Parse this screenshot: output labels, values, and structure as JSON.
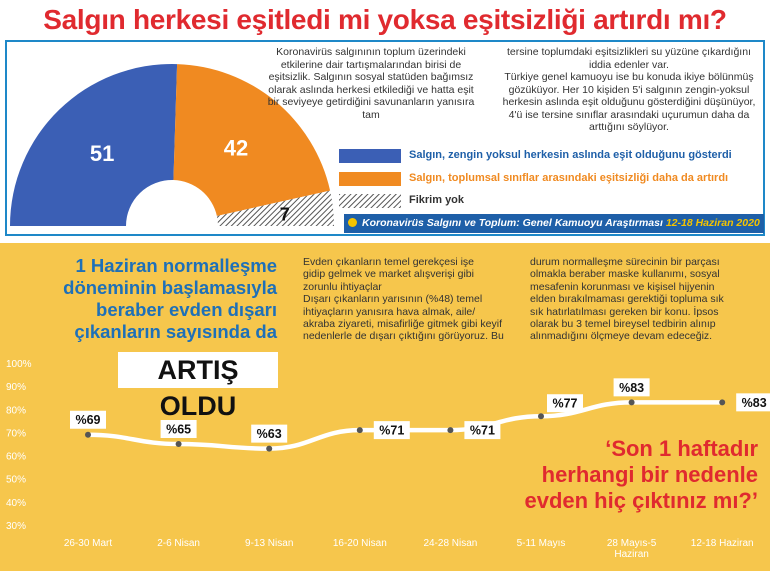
{
  "title": "Salgın herkesi eşitledi mi yoksa eşitsizliği artırdı mı?",
  "top_text": {
    "col1": "Koronavirüs salgınının toplum üzerindeki etkilerine dair tartışmalarından birisi de eşitsizlik. Salgının sosyal statüden bağımsız olarak aslında herkesi etkilediği ve hatta eşit bir seviyeye getirdiğini savunanların yanısıra tam",
    "col2": "tersine toplumdaki eşitsizlikleri su yüzüne çıkardığını iddia edenler var.\nTürkiye genel kamuoyu ise bu konuda ikiye bölünmüş gözüküyor. Her 10 kişiden 5'i salgının zengin-yoksul herkesin aslında eşit olduğunu gösterdiğini düşünüyor, 4'ü ise tersine sınıflar arasındaki uçurumun daha da arttığını söylüyor."
  },
  "legend": [
    {
      "label": "Salgın, zengin yoksul herkesin aslında eşit olduğunu gösterdi",
      "color": "#3b5fb5"
    },
    {
      "label": "Salgın, toplumsal sınıflar arasındaki eşitsizliği daha da artırdı",
      "color": "#f08a21"
    },
    {
      "label": "Fikrim yok",
      "color": "hatched"
    }
  ],
  "source": {
    "text": "Koronavirüs Salgını ve Toplum: Genel Kamuoyu Araştırması",
    "date": "12-18 Haziran 2020"
  },
  "headline": [
    "1 Haziran normalleşme",
    "döneminin başlamasıyla",
    "beraber evden dışarı",
    "çıkanların sayısında da"
  ],
  "headline_emph": "ARTIŞ OLDU",
  "body_col1": [
    "Evden çıkanların temel gerekçesi işe",
    "gidip gelmek ve market alışverişi gibi",
    "zorunlu ihtiyaçlar",
    "Dışarı çıkanların yarısının (%48) temel",
    "ihtiyaçların yanısıra hava almak, aile/",
    "akraba ziyareti, misafirliğe gitmek gibi keyif",
    "nedenlerle de dışarı çıktığını görüyoruz. Bu"
  ],
  "body_col2": [
    "durum normalleşme sürecinin bir parçası",
    "olmakla beraber maske kullanımı, sosyal",
    "mesafenin korunması ve kişisel hijyenin",
    "elden bırakılmaması gerektiği topluma sık",
    "sık hatırlatılması gereken bir konu. İpsos",
    "olarak bu 3 temel bireysel tedbirin alınıp",
    "alınmadığını ölçmeye devam edeceğiz."
  ],
  "question": [
    "‘Son 1 haftadır",
    "herhangi bir nedenle",
    "evden hiç çıktınız mı?’"
  ],
  "chart_data": [
    {
      "type": "pie",
      "categories": [
        "Salgın, zengin yoksul herkesin aslında eşit olduğunu gösterdi",
        "Salgın, toplumsal sınıflar arasındaki eşitsizliği daha da artırdı",
        "Fikrim yok"
      ],
      "values": [
        51,
        42,
        7
      ],
      "colors": [
        "#3b5fb5",
        "#f08a21",
        "#b9b9b9"
      ],
      "shape": "semi-donut"
    },
    {
      "type": "line",
      "categories": [
        "26-30 Mart",
        "2-6 Nisan",
        "9-13 Nisan",
        "16-20 Nisan",
        "24-28 Nisan",
        "5-11 Mayıs",
        "28 Mayıs-5 Haziran",
        "12-18 Haziran"
      ],
      "category_lines": [
        [
          "26-30 Mart"
        ],
        [
          "2-6 Nisan"
        ],
        [
          "9-13 Nisan"
        ],
        [
          "16-20 Nisan"
        ],
        [
          "24-28 Nisan"
        ],
        [
          "5-11 Mayıs"
        ],
        [
          "28 Mayıs-5",
          "Haziran"
        ],
        [
          "12-18 Haziran"
        ]
      ],
      "values": [
        69,
        65,
        63,
        71,
        71,
        77,
        83,
        83
      ],
      "value_labels": [
        "%69",
        "%65",
        "%63",
        "%71",
        "%71",
        "%77",
        "%83",
        "%83"
      ],
      "yticks": [
        "30%",
        "40%",
        "50%",
        "60%",
        "70%",
        "80%",
        "90%",
        "100%"
      ],
      "ylim": [
        30,
        100
      ],
      "grid": false
    }
  ]
}
